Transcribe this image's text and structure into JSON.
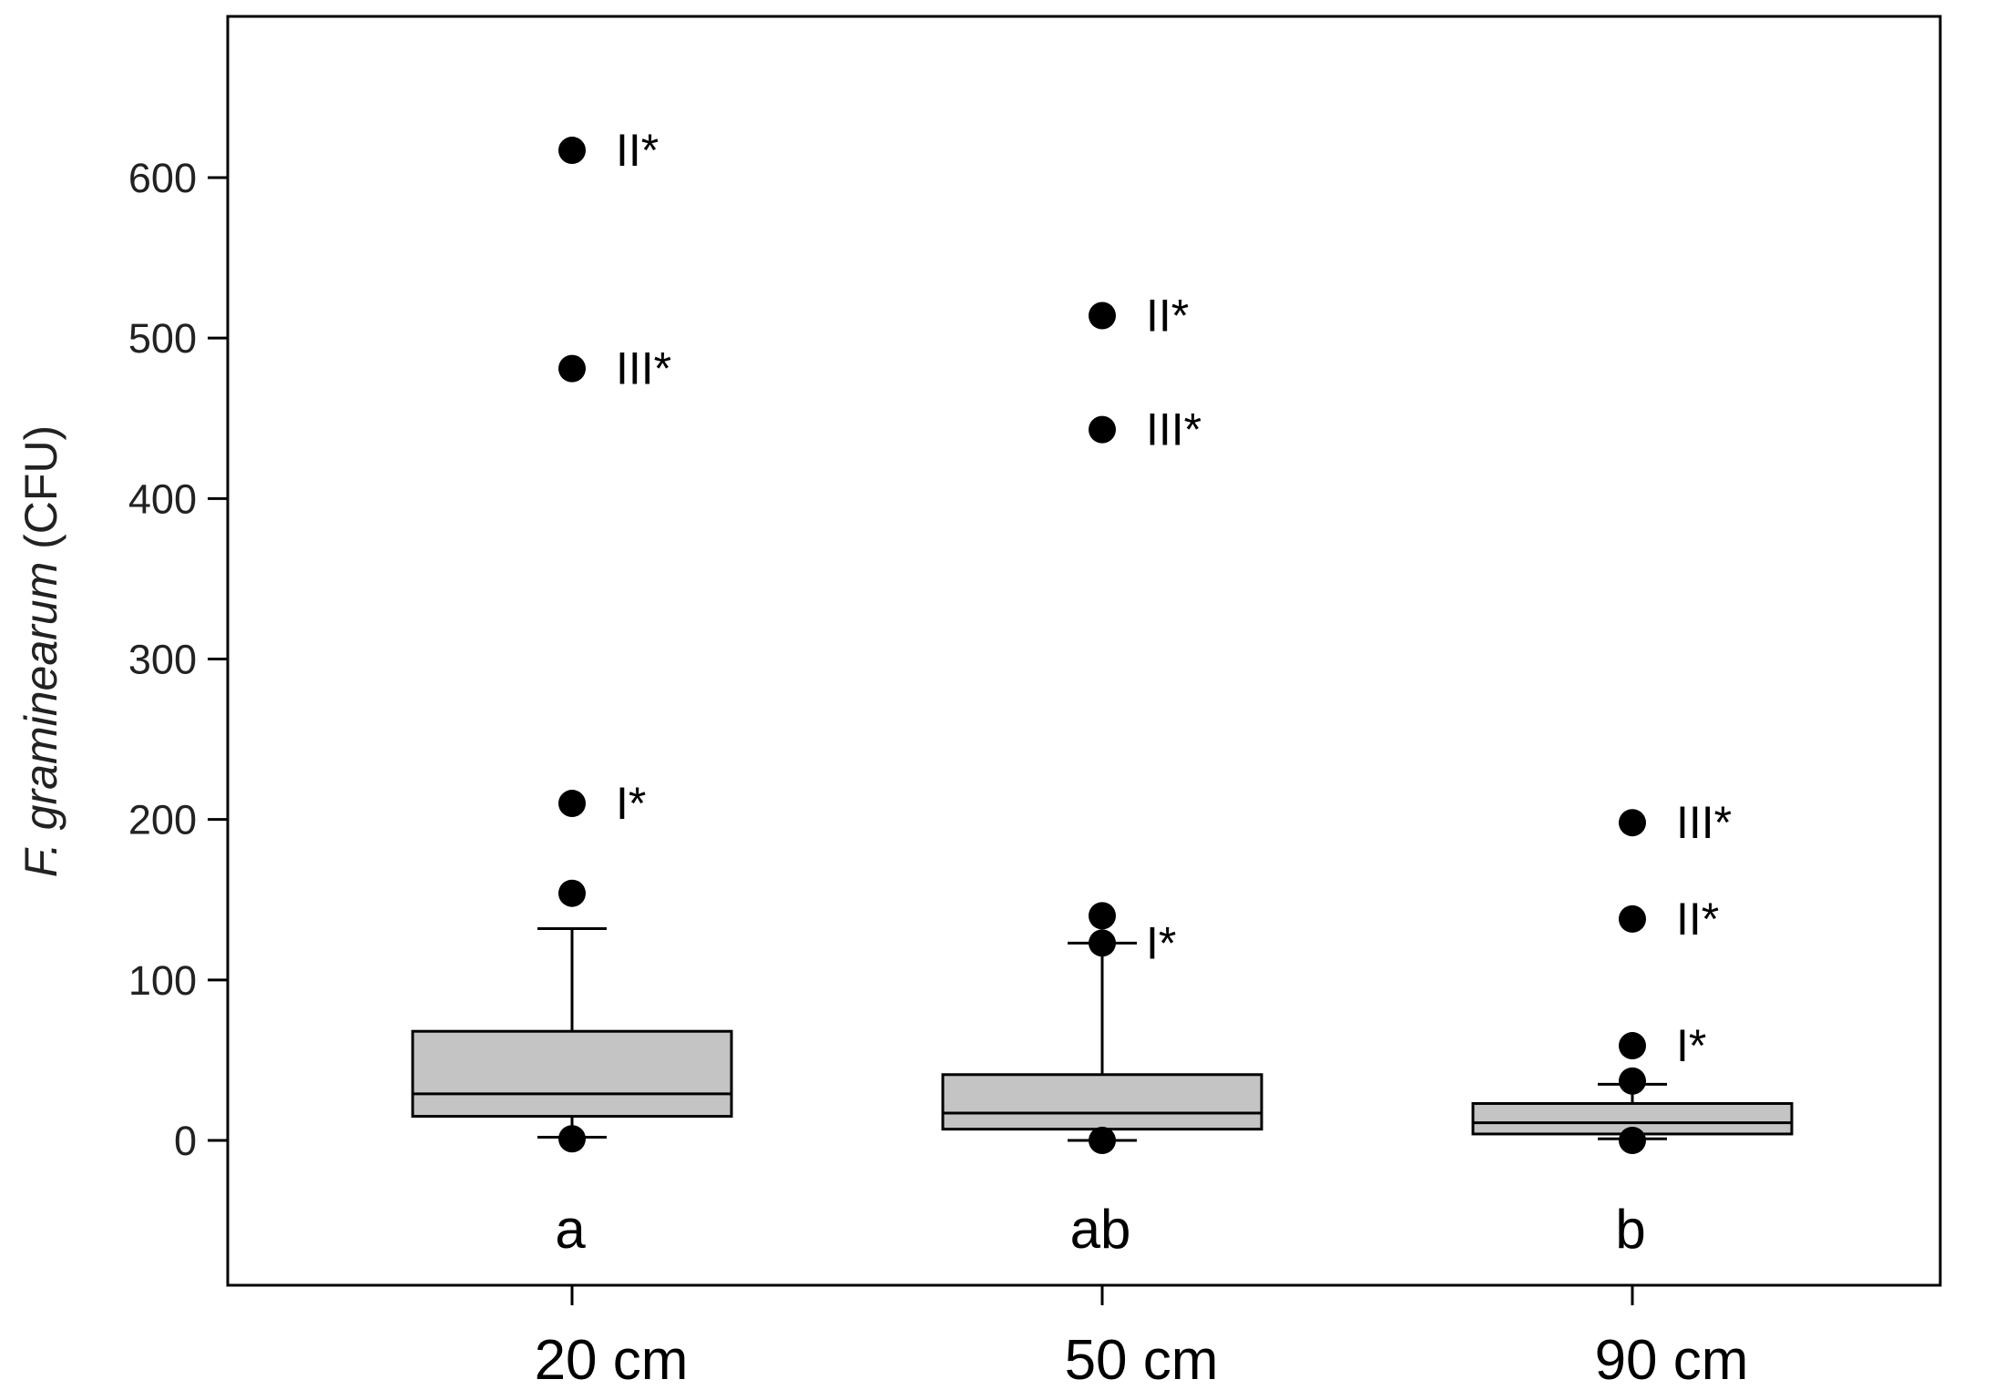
{
  "chart_data": {
    "type": "box",
    "ylabel_italic": "F. graminearum",
    "ylabel_rest": "(CFU)",
    "ylim": [
      -90,
      700
    ],
    "yticks": [
      0,
      100,
      200,
      300,
      400,
      500,
      600
    ],
    "ytick_labels": [
      "0",
      "100",
      "200",
      "300",
      "400",
      "500",
      "600"
    ],
    "categories": [
      "20 cm",
      "50 cm",
      "90 cm"
    ],
    "group_letters": [
      "a",
      "ab",
      "b"
    ],
    "box_color": "#c4c4c4",
    "boxes": [
      {
        "category": "20 cm",
        "whisker_low": 2,
        "q1": 15,
        "median": 29,
        "q3": 68,
        "whisker_high": 132,
        "outliers": [
          {
            "value": 617,
            "label": "II*"
          },
          {
            "value": 481,
            "label": "III*"
          },
          {
            "value": 210,
            "label": "I*"
          },
          {
            "value": 154,
            "label": ""
          },
          {
            "value": 1,
            "label": ""
          }
        ]
      },
      {
        "category": "50 cm",
        "whisker_low": 0,
        "q1": 7,
        "median": 17,
        "q3": 41,
        "whisker_high": 123,
        "outliers": [
          {
            "value": 514,
            "label": "II*"
          },
          {
            "value": 443,
            "label": "III*"
          },
          {
            "value": 140,
            "label": ""
          },
          {
            "value": 123,
            "label": "I*"
          },
          {
            "value": 0,
            "label": ""
          }
        ]
      },
      {
        "category": "90 cm",
        "whisker_low": 1,
        "q1": 4,
        "median": 11,
        "q3": 23,
        "whisker_high": 35,
        "outliers": [
          {
            "value": 198,
            "label": "III*"
          },
          {
            "value": 138,
            "label": "II*"
          },
          {
            "value": 59,
            "label": "I*"
          },
          {
            "value": 37,
            "label": ""
          },
          {
            "value": 0,
            "label": ""
          }
        ]
      }
    ]
  }
}
